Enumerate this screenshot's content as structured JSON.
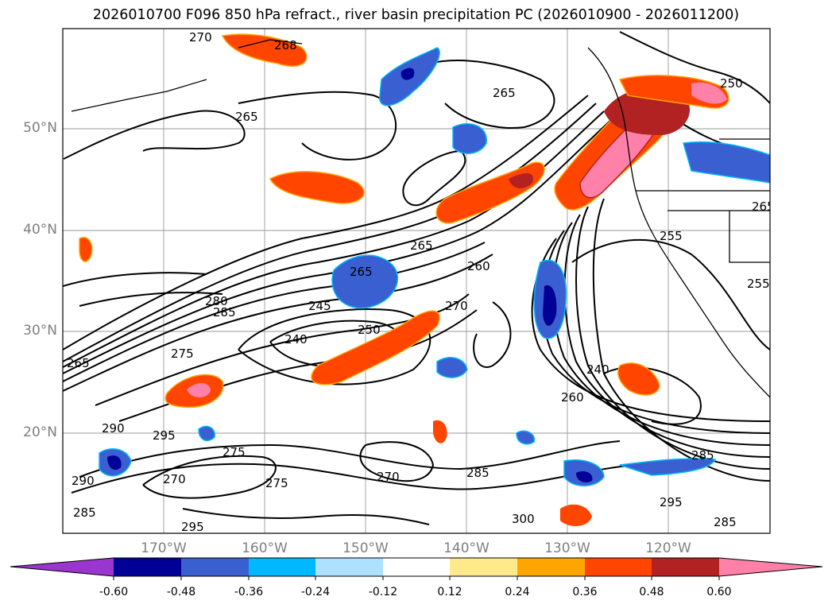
{
  "title": "2026010700 F096 850 hPa refract., river basin precipitation PC (2026010900 - 2026011200)",
  "lat_labels": [
    "50°N",
    "40°N",
    "30°N",
    "20°N"
  ],
  "lon_labels": [
    "170°W",
    "160°W",
    "150°W",
    "140°W",
    "130°W",
    "120°W"
  ],
  "colorbar": {
    "levels": [
      "-0.60",
      "-0.48",
      "-0.36",
      "-0.24",
      "-0.12",
      "0.12",
      "0.24",
      "0.36",
      "0.48",
      "0.60"
    ],
    "colors": [
      "#9b35d0",
      "#000096",
      "#3a5fd0",
      "#00b8ff",
      "#aee0ff",
      "#ffffff",
      "#ffe98a",
      "#ffa500",
      "#ff4500",
      "#b22222",
      "#ff80a8"
    ]
  },
  "contour_labels": [
    "270",
    "268",
    "265",
    "250",
    "265",
    "265",
    "265",
    "260",
    "285",
    "280",
    "245",
    "240",
    "250",
    "270",
    "275",
    "265",
    "290",
    "295",
    "275",
    "270",
    "275",
    "270",
    "285",
    "295",
    "300",
    "295",
    "285",
    "240",
    "260",
    "285",
    "255",
    "255",
    "290",
    "285",
    "265"
  ]
}
